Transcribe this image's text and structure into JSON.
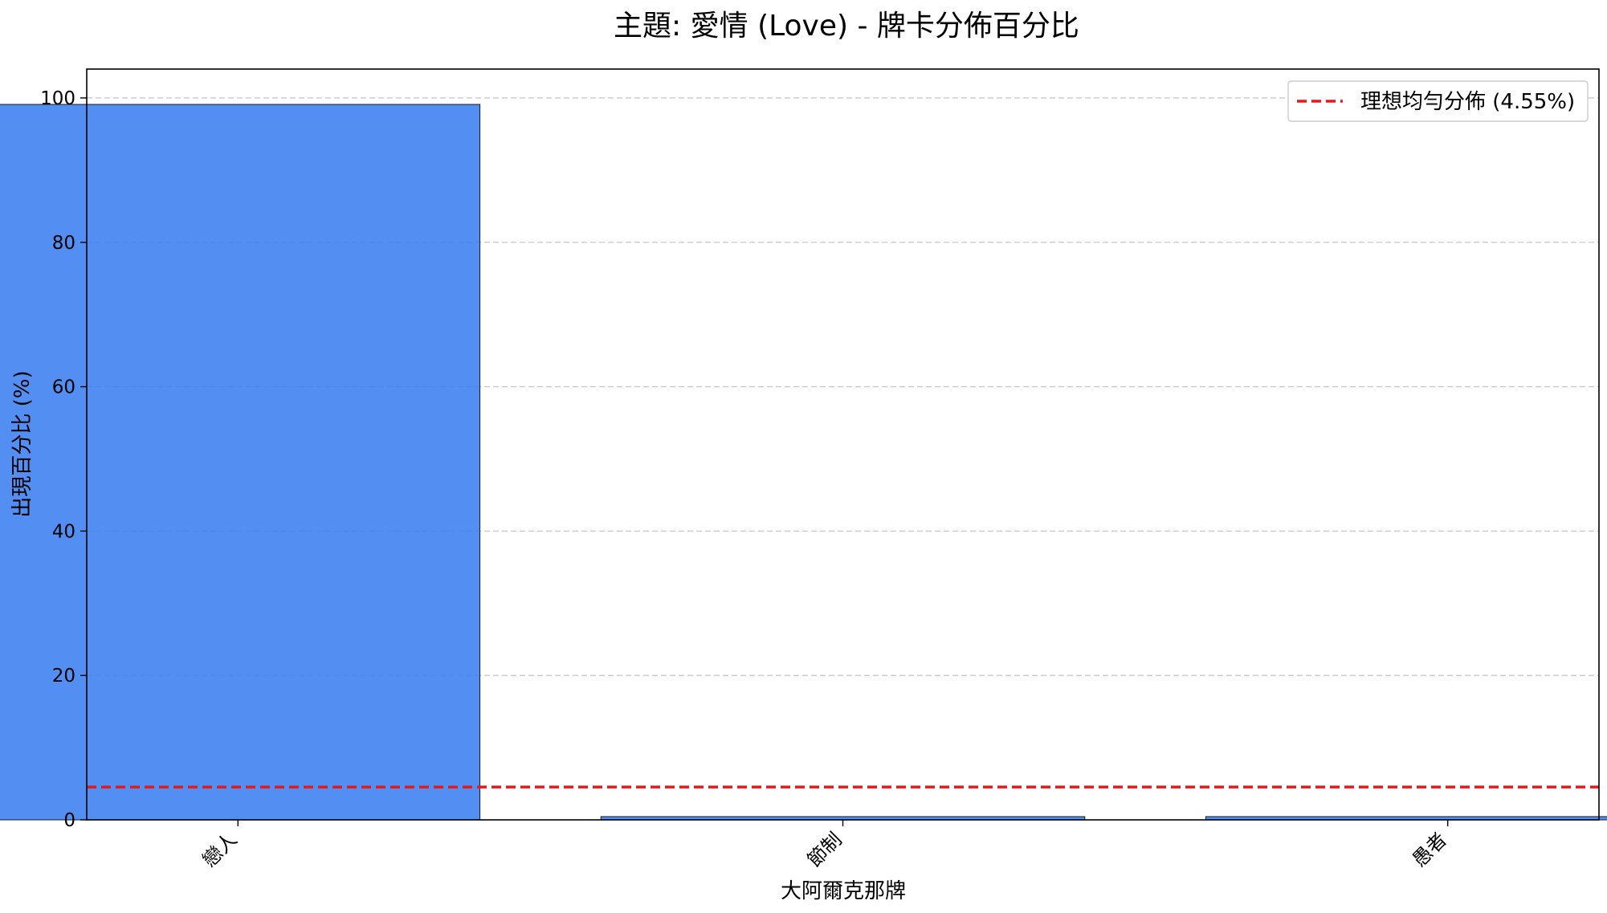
{
  "chart_data": {
    "type": "bar",
    "title": "主題: 愛情 (Love) - 牌卡分佈百分比",
    "xlabel": "大阿爾克那牌",
    "ylabel": "出現百分比 (%)",
    "categories": [
      "戀人",
      "節制",
      "愚者"
    ],
    "values": [
      99.1,
      0.45,
      0.45
    ],
    "ylim": [
      0,
      104
    ],
    "yticks": [
      0,
      20,
      40,
      60,
      80,
      100
    ],
    "grid": true,
    "bar_color": "#3b7ff0",
    "reference_line": {
      "value": 4.55,
      "label": "理想均勻分佈 (4.55%)",
      "color": "#e31a1c",
      "style": "dashed"
    },
    "legend": {
      "position": "top-right",
      "entries": [
        "理想均勻分佈 (4.55%)"
      ]
    }
  }
}
